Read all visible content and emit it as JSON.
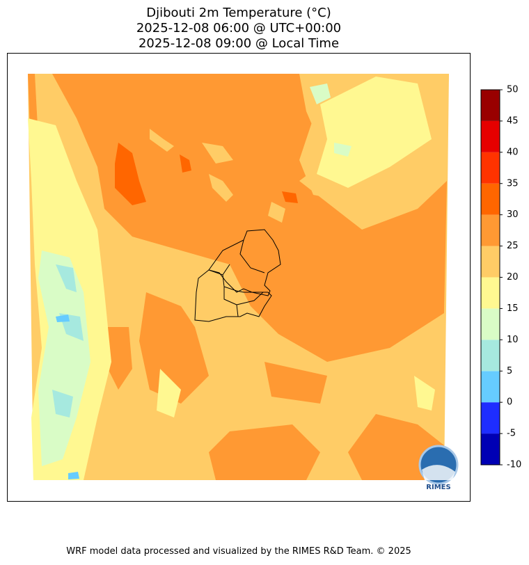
{
  "title": [
    "Djibouti 2m Temperature (°C)",
    "2025-12-08 06:00 @ UTC+00:00",
    "2025-12-08 09:00 @ Local Time"
  ],
  "colorbar": {
    "levels": [
      -10,
      -5,
      0,
      5,
      10,
      15,
      20,
      25,
      30,
      35,
      40,
      45,
      50
    ],
    "colors": [
      "#0000b4",
      "#1e2dff",
      "#66ccff",
      "#a6e9df",
      "#d9fcc6",
      "#fff891",
      "#ffcc66",
      "#ff9933",
      "#ff6600",
      "#ff3300",
      "#e60000",
      "#990000"
    ]
  },
  "logo": "RIMES",
  "footer": "WRF model data processed and visualized by the RIMES R&D Team. © 2025"
}
